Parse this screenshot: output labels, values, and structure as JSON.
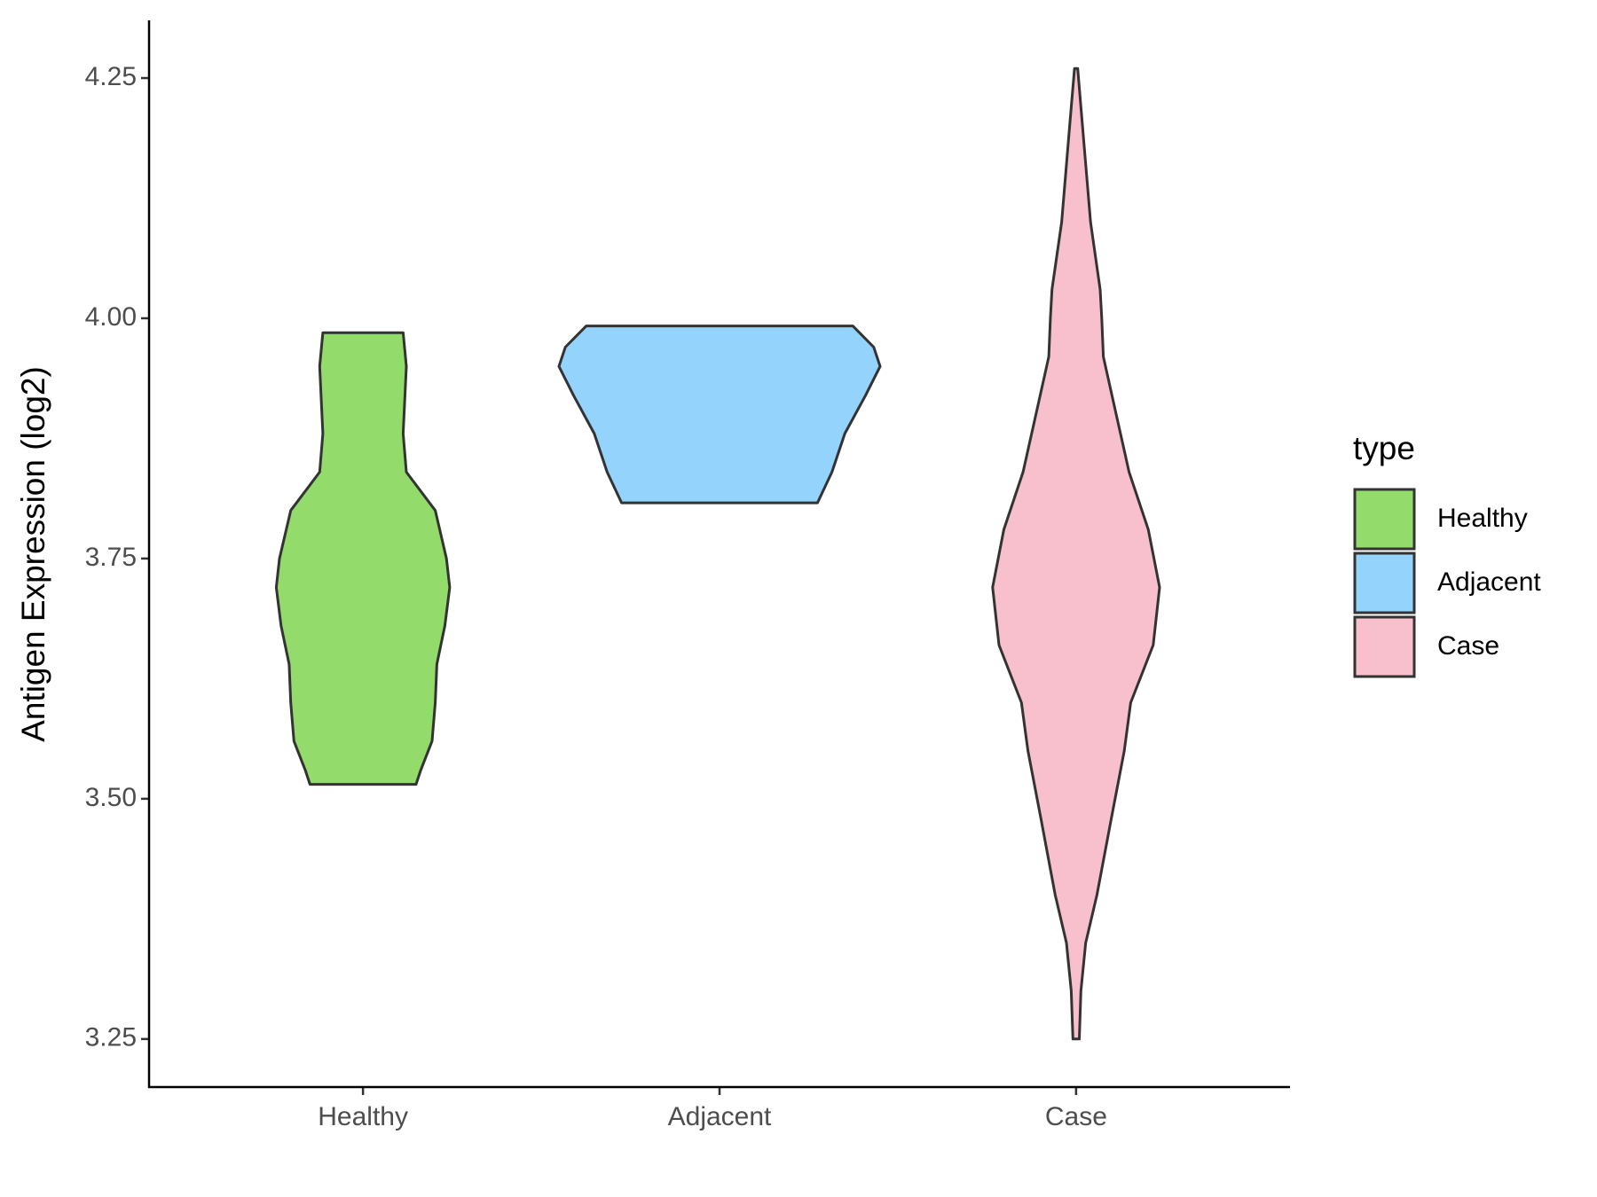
{
  "chart_data": {
    "type": "violin",
    "y_label": "Antigen Expression (log2)",
    "categories": [
      "Healthy",
      "Adjacent",
      "Case"
    ],
    "ylim": [
      3.2,
      4.31
    ],
    "yticks": [
      3.25,
      {
        "value": 3.5,
        "label": "3.50"
      },
      3.75,
      {
        "value": 4.0,
        "label": "4.00"
      },
      4.25
    ],
    "legend_title": "type",
    "legend_position": "right",
    "series": [
      {
        "name": "Healthy",
        "color": "#93db6a",
        "y": [
          3.515,
          3.53,
          3.56,
          3.6,
          3.64,
          3.68,
          3.72,
          3.75,
          3.8,
          3.84,
          3.88,
          3.95,
          3.985
        ],
        "density": [
          0.33,
          0.36,
          0.43,
          0.45,
          0.46,
          0.51,
          0.54,
          0.52,
          0.45,
          0.27,
          0.25,
          0.27,
          0.25
        ]
      },
      {
        "name": "Adjacent",
        "color": "#93d3fc",
        "y": [
          3.808,
          3.84,
          3.88,
          3.92,
          3.95,
          3.97,
          3.992
        ],
        "density": [
          0.61,
          0.7,
          0.78,
          0.91,
          1.0,
          0.96,
          0.83
        ]
      },
      {
        "name": "Case",
        "color": "#f7c0cc",
        "y": [
          3.25,
          3.3,
          3.35,
          3.4,
          3.48,
          3.55,
          3.6,
          3.66,
          3.72,
          3.78,
          3.84,
          3.9,
          3.96,
          4.0,
          4.03,
          4.1,
          4.2,
          4.26
        ],
        "density": [
          0.02,
          0.03,
          0.06,
          0.13,
          0.22,
          0.3,
          0.34,
          0.48,
          0.52,
          0.45,
          0.33,
          0.25,
          0.17,
          0.16,
          0.15,
          0.09,
          0.04,
          0.01
        ]
      }
    ]
  }
}
